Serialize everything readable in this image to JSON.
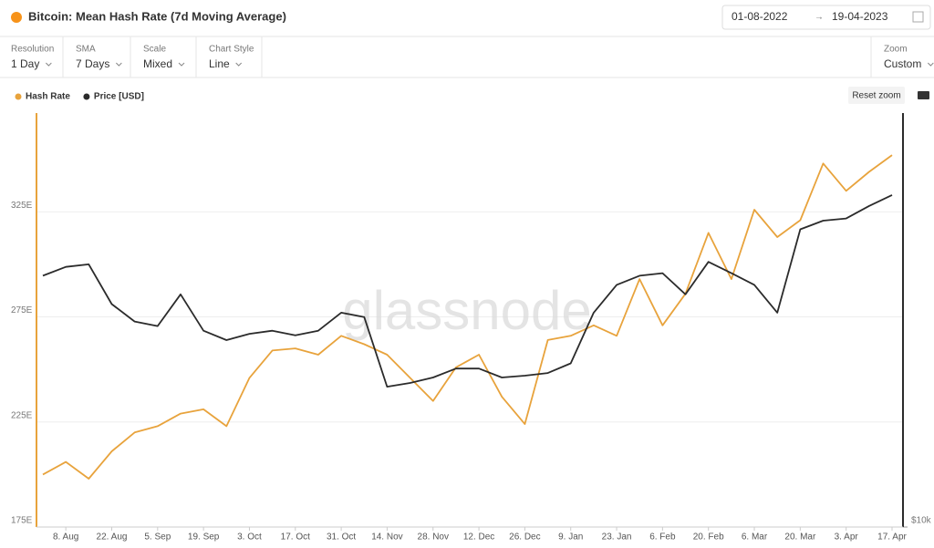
{
  "header": {
    "date_from": "01-08-2022",
    "date_to": "19-04-2023"
  },
  "toolbar": [
    {
      "label": "Resolution",
      "value": "1 Day"
    },
    {
      "label": "SMA",
      "value": "7 Days"
    },
    {
      "label": "Scale",
      "value": "Mixed"
    },
    {
      "label": "Chart Style",
      "value": "Line"
    },
    {
      "label": "Zoom",
      "value": "Custom"
    }
  ],
  "reset_zoom": "Reset zoom",
  "watermark": "glassnode",
  "chart_data": {
    "type": "line",
    "title": "Bitcoin: Mean Hash Rate (7d Moving Average)",
    "categories": [
      null,
      "8. Aug",
      null,
      "22. Aug",
      null,
      "5. Sep",
      null,
      "19. Sep",
      null,
      "3. Oct",
      null,
      "17. Oct",
      null,
      "31. Oct",
      null,
      "14. Nov",
      null,
      "28. Nov",
      null,
      "12. Dec",
      null,
      "26. Dec",
      null,
      "9. Jan",
      null,
      "23. Jan",
      null,
      "6. Feb",
      null,
      "20. Feb",
      null,
      "6. Mar",
      null,
      "20. Mar",
      null,
      "3. Apr",
      null,
      "17. Apr"
    ],
    "series": [
      {
        "name": "Hash Rate",
        "color": "#e8a33c",
        "values": [
          200,
          206,
          198,
          211,
          220,
          223,
          229,
          231,
          223,
          246,
          259,
          260,
          257,
          266,
          262,
          257,
          246,
          235,
          251,
          257,
          237,
          224,
          264,
          266,
          271,
          266,
          293,
          271,
          286,
          315,
          293,
          326,
          313,
          321,
          348,
          335,
          344,
          352
        ]
      },
      {
        "name": "Price [USD]",
        "color": "#2b2b2b",
        "axis": "y2",
        "values": [
          23200,
          23900,
          24100,
          21100,
          19900,
          19600,
          21800,
          19300,
          18700,
          19100,
          19300,
          19000,
          19300,
          20500,
          20200,
          16000,
          16200,
          16500,
          17000,
          17000,
          16500,
          16600,
          16750,
          17300,
          20500,
          22500,
          23200,
          23400,
          21800,
          24300,
          23400,
          22500,
          20500,
          27100,
          27900,
          28100,
          29300,
          30400
        ]
      }
    ],
    "ylim": [
      175,
      372
    ],
    "yticks": [
      {
        "value": 175,
        "label": "175E"
      },
      {
        "value": 225,
        "label": "225E"
      },
      {
        "value": 275,
        "label": "275E"
      },
      {
        "value": 325,
        "label": "325E"
      }
    ],
    "y2lim": [
      10000,
      40000
    ],
    "y2ticks": [
      {
        "value": 10000,
        "label": "$10k"
      }
    ],
    "y2scale": "log",
    "grid": true
  }
}
